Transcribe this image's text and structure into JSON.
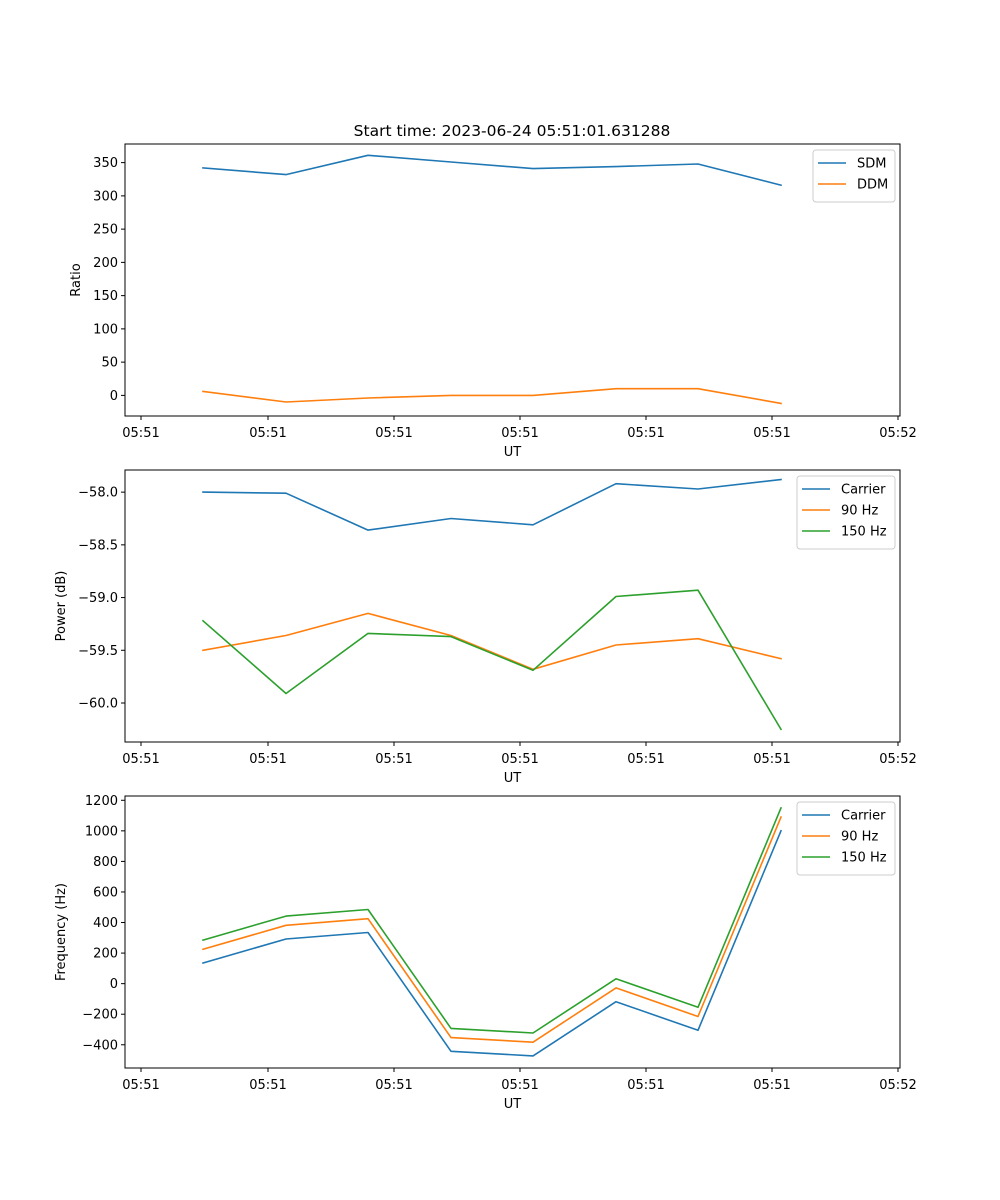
{
  "chart_data": [
    {
      "type": "line",
      "title": "Start time: 2023-06-24 05:51:01.631288",
      "xlabel": "UT",
      "ylabel": "Ratio",
      "x_tick_labels": [
        "05:51",
        "05:51",
        "05:51",
        "05:51",
        "05:51",
        "05:51",
        "05:52"
      ],
      "y_ticks": [
        0,
        50,
        100,
        150,
        200,
        250,
        300,
        350
      ],
      "y_tick_labels": [
        "0",
        "50",
        "100",
        "150",
        "200",
        "250",
        "300",
        "350"
      ],
      "ylim": [
        -31,
        378
      ],
      "legend_position": "top-right",
      "series": [
        {
          "name": "SDM",
          "color": "#1f77b4",
          "values": [
            342,
            332,
            361,
            351,
            341,
            344,
            348,
            316
          ]
        },
        {
          "name": "DDM",
          "color": "#ff7f0e",
          "values": [
            6,
            -10,
            -4,
            0,
            0,
            10,
            10,
            -12
          ]
        }
      ]
    },
    {
      "type": "line",
      "title": "",
      "xlabel": "UT",
      "ylabel": "Power (dB)",
      "x_tick_labels": [
        "05:51",
        "05:51",
        "05:51",
        "05:51",
        "05:51",
        "05:51",
        "05:52"
      ],
      "y_ticks": [
        -60.0,
        -59.5,
        -59.0,
        -58.5,
        -58.0
      ],
      "y_tick_labels": [
        "−60.0",
        "−59.5",
        "−59.0",
        "−58.5",
        "−58.0"
      ],
      "ylim": [
        -60.37,
        -57.79
      ],
      "legend_position": "top-right",
      "series": [
        {
          "name": "Carrier",
          "color": "#1f77b4",
          "values": [
            -58.0,
            -58.01,
            -58.36,
            -58.25,
            -58.31,
            -57.92,
            -57.97,
            -57.88
          ]
        },
        {
          "name": "90 Hz",
          "color": "#ff7f0e",
          "values": [
            -59.5,
            -59.36,
            -59.15,
            -59.36,
            -59.68,
            -59.45,
            -59.39,
            -59.58
          ]
        },
        {
          "name": "150 Hz",
          "color": "#2ca02c",
          "values": [
            -59.22,
            -59.91,
            -59.34,
            -59.37,
            -59.69,
            -58.99,
            -58.93,
            -60.25
          ]
        }
      ]
    },
    {
      "type": "line",
      "title": "",
      "xlabel": "UT",
      "ylabel": "Frequency (Hz)",
      "x_tick_labels": [
        "05:51",
        "05:51",
        "05:51",
        "05:51",
        "05:51",
        "05:51",
        "05:52"
      ],
      "y_ticks": [
        -400,
        -200,
        0,
        200,
        400,
        600,
        800,
        1000,
        1200
      ],
      "y_tick_labels": [
        "−400",
        "−200",
        "0",
        "200",
        "400",
        "600",
        "800",
        "1000",
        "1200"
      ],
      "ylim": [
        -552,
        1228
      ],
      "legend_position": "top-right",
      "series": [
        {
          "name": "Carrier",
          "color": "#1f77b4",
          "values": [
            135,
            292,
            335,
            -443,
            -473,
            -118,
            -305,
            1000
          ]
        },
        {
          "name": "90 Hz",
          "color": "#ff7f0e",
          "values": [
            225,
            382,
            425,
            -353,
            -383,
            -28,
            -215,
            1090
          ]
        },
        {
          "name": "150 Hz",
          "color": "#2ca02c",
          "values": [
            285,
            442,
            485,
            -293,
            -323,
            32,
            -155,
            1150
          ]
        }
      ]
    }
  ]
}
